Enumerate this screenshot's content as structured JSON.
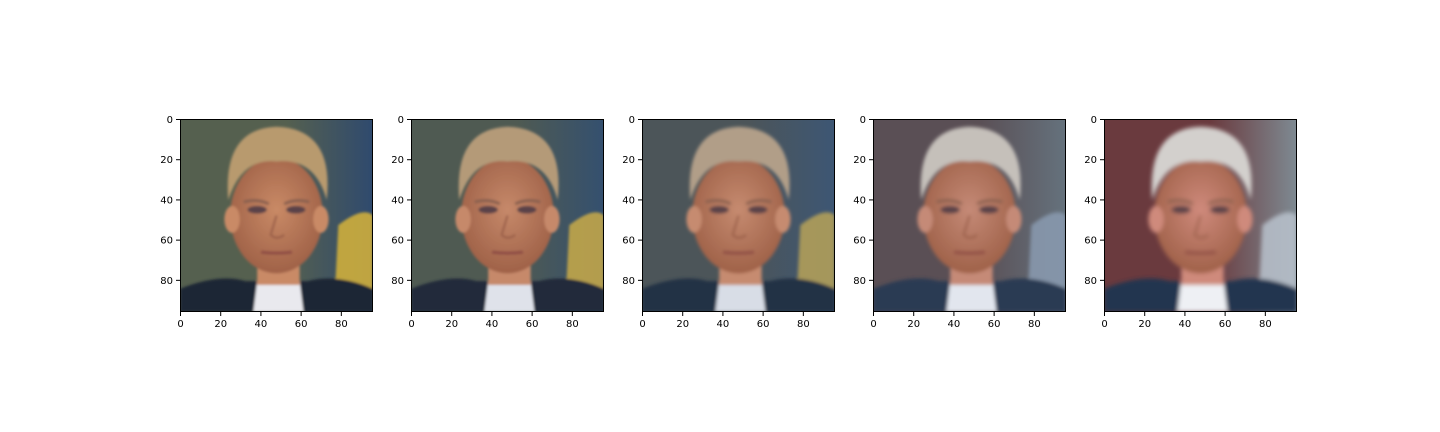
{
  "figure": {
    "description_panels": 5,
    "xlim": [
      0,
      96
    ],
    "ylim": [
      96,
      0
    ],
    "xticks": [
      0,
      20,
      40,
      60,
      80
    ],
    "yticks": [
      0,
      20,
      40,
      60,
      80
    ]
  },
  "panels": [
    {
      "subject": "face-photo",
      "blend": 0.0,
      "colors": {
        "bg_left": "#55604f",
        "bg_right": "#2f4a6e",
        "accent": "#d7b43a",
        "hair": "#b89a6e",
        "skin": "#c98a66",
        "suit": "#1f2535",
        "shirt": "#e9e9ee"
      }
    },
    {
      "subject": "face-photo",
      "blend": 0.25,
      "colors": {
        "bg_left": "#4f5a52",
        "bg_right": "#34506f",
        "accent": "#c9aa48",
        "hair": "#b49a78",
        "skin": "#c6896a",
        "suit": "#222a3a",
        "shirt": "#dfe2ea"
      }
    },
    {
      "subject": "face-photo",
      "blend": 0.5,
      "colors": {
        "bg_left": "#4c5559",
        "bg_right": "#3d5674",
        "accent": "#b7a257",
        "hair": "#b19e88",
        "skin": "#c68b70",
        "suit": "#243044",
        "shirt": "#d8dde6"
      }
    },
    {
      "subject": "face-photo",
      "blend": 0.75,
      "colors": {
        "bg_left": "#5a4f55",
        "bg_right": "#65727d",
        "accent": "#8a9bb0",
        "hair": "#c5c0ba",
        "skin": "#c58a77",
        "suit": "#2a3a52",
        "shirt": "#e2e6ee"
      }
    },
    {
      "subject": "face-photo",
      "blend": 1.0,
      "colors": {
        "bg_left": "#6a3a3e",
        "bg_right": "#7e8a92",
        "accent": "#b8c2cc",
        "hair": "#d3d0cd",
        "skin": "#cf8a7c",
        "suit": "#243650",
        "shirt": "#eef0f4"
      }
    }
  ]
}
